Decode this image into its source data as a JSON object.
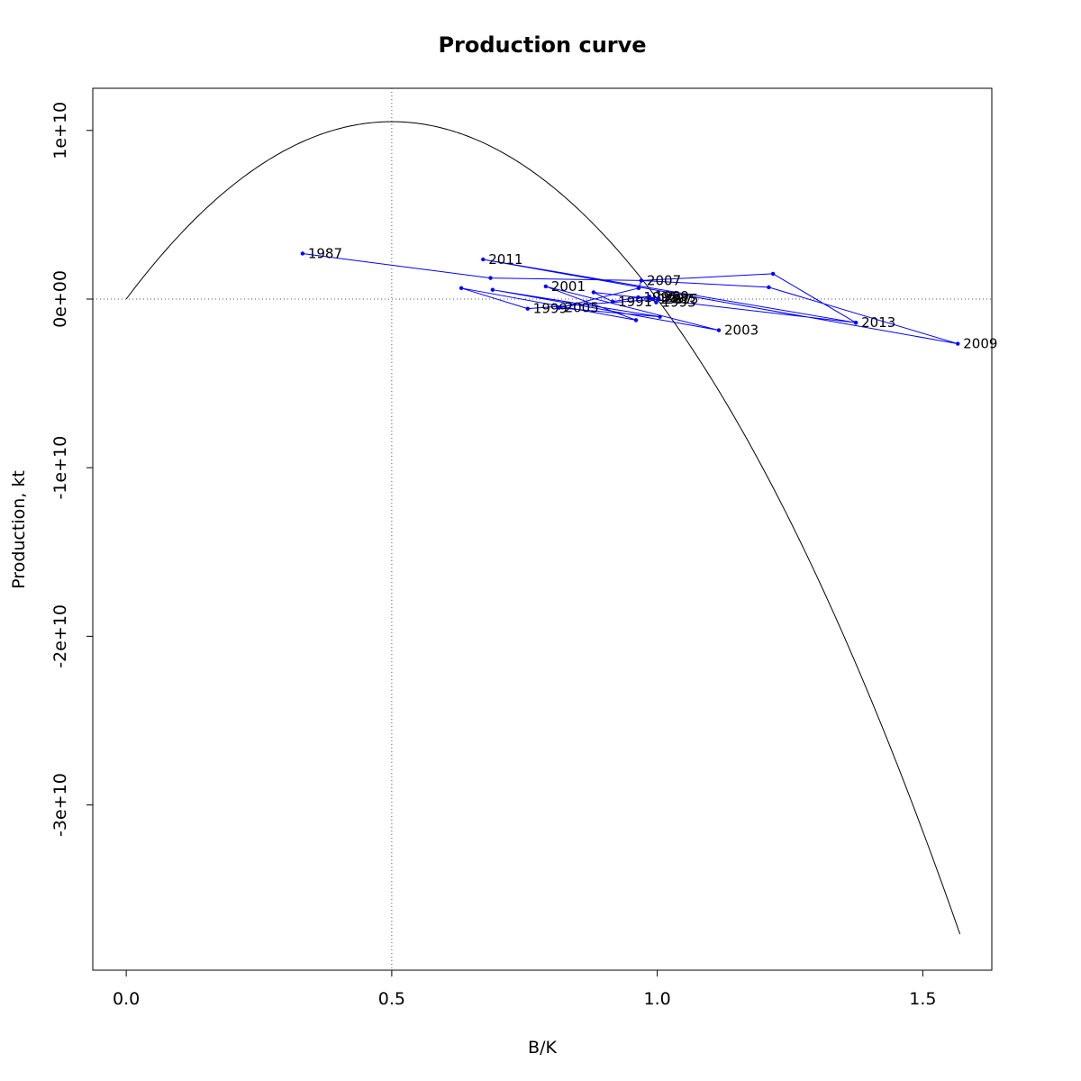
{
  "chart_data": {
    "type": "line",
    "title": "Production curve",
    "xlabel": "B/K",
    "ylabel": "Production, kt",
    "xlim": [
      -0.063,
      1.63
    ],
    "ylim": [
      -39800000000.0,
      12500000000.0
    ],
    "xticks": [
      {
        "value": 0.0,
        "label": "0.0"
      },
      {
        "value": 0.5,
        "label": "0.5"
      },
      {
        "value": 1.0,
        "label": "1.0"
      },
      {
        "value": 1.5,
        "label": "1.5"
      }
    ],
    "yticks": [
      {
        "value": 10000000000.0,
        "label": "1e+10"
      },
      {
        "value": 0,
        "label": "0e+00"
      },
      {
        "value": -10000000000.0,
        "label": "-1e+10"
      },
      {
        "value": -20000000000.0,
        "label": "-2e+10"
      },
      {
        "value": -30000000000.0,
        "label": "-3e+10"
      }
    ],
    "reference_lines": {
      "x": 0.5,
      "y": 0,
      "style": "dotted"
    },
    "grid": false,
    "legend": "none",
    "curve": {
      "name": "",
      "color": "#000000",
      "form": "quadratic",
      "x_range": [
        0,
        1.57
      ],
      "peak": {
        "x": 0.5,
        "y": 10520000000.0
      },
      "points": [
        {
          "x": 0.0,
          "y": 0
        },
        {
          "x": 0.25,
          "y": 7890000000.0
        },
        {
          "x": 0.5,
          "y": 10520000000.0
        },
        {
          "x": 0.75,
          "y": 7890000000.0
        },
        {
          "x": 1.0,
          "y": 0
        },
        {
          "x": 1.25,
          "y": -13150000000.0
        },
        {
          "x": 1.57,
          "y": -38000000000.0
        }
      ]
    },
    "series": [
      {
        "name": "",
        "color": "#0000ff",
        "points": [
          {
            "x": 0.332,
            "y": 2700000000.0,
            "label": "1987"
          },
          {
            "x": 0.686,
            "y": 1250000000.0,
            "label": ""
          },
          {
            "x": 0.97,
            "y": 1100000000.0,
            "label": ""
          },
          {
            "x": 1.218,
            "y": 1500000000.0,
            "label": ""
          },
          {
            "x": 1.374,
            "y": -1400000000.0,
            "label": ""
          },
          {
            "x": 0.88,
            "y": 400000000.0,
            "label": ""
          },
          {
            "x": 0.916,
            "y": -150000000.0,
            "label": "1991"
          },
          {
            "x": 0.964,
            "y": 100000000.0,
            "label": "1995"
          },
          {
            "x": 0.985,
            "y": 150000000.0,
            "label": "1989"
          },
          {
            "x": 0.992,
            "y": 0,
            "label": "1997"
          },
          {
            "x": 0.998,
            "y": -200000000.0,
            "label": "1993"
          },
          {
            "x": 1.003,
            "y": 0,
            "label": "2015"
          },
          {
            "x": 0.756,
            "y": -570000000.0,
            "label": "1999"
          },
          {
            "x": 0.631,
            "y": 650000000.0,
            "label": ""
          },
          {
            "x": 0.96,
            "y": -1250000000.0,
            "label": ""
          },
          {
            "x": 0.79,
            "y": 750000000.0,
            "label": "2001"
          },
          {
            "x": 1.116,
            "y": -1850000000.0,
            "label": "2003"
          },
          {
            "x": 0.69,
            "y": 550000000.0,
            "label": ""
          },
          {
            "x": 1.005,
            "y": -1050000000.0,
            "label": ""
          },
          {
            "x": 0.815,
            "y": -520000000.0,
            "label": "2005"
          },
          {
            "x": 0.965,
            "y": 650000000.0,
            "label": ""
          },
          {
            "x": 0.97,
            "y": 1100000000.0,
            "label": "2007"
          },
          {
            "x": 1.21,
            "y": 700000000.0,
            "label": ""
          },
          {
            "x": 1.566,
            "y": -2650000000.0,
            "label": "2009"
          },
          {
            "x": 0.672,
            "y": 2350000000.0,
            "label": "2011"
          },
          {
            "x": 1.374,
            "y": -1400000000.0,
            "label": "2013"
          },
          {
            "x": 0.99,
            "y": 0,
            "label": ""
          }
        ]
      }
    ]
  }
}
